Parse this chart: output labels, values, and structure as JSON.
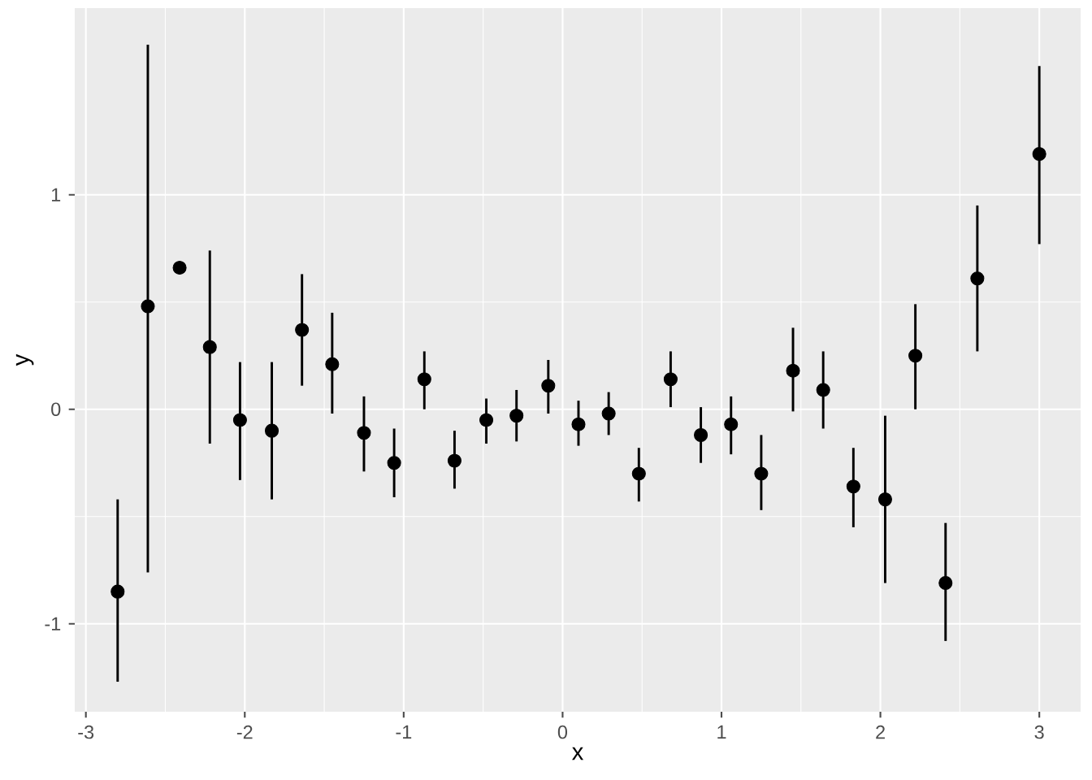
{
  "chart_data": {
    "type": "scatter",
    "xlabel": "x",
    "ylabel": "y",
    "x": [
      -2.8,
      -2.61,
      -2.41,
      -2.22,
      -2.03,
      -1.83,
      -1.64,
      -1.45,
      -1.25,
      -1.06,
      -0.87,
      -0.68,
      -0.48,
      -0.29,
      -0.09,
      0.1,
      0.29,
      0.48,
      0.68,
      0.87,
      1.06,
      1.25,
      1.45,
      1.64,
      1.83,
      2.03,
      2.22,
      2.41,
      2.61,
      3.0
    ],
    "values": [
      -0.85,
      0.48,
      0.66,
      0.29,
      -0.05,
      -0.1,
      0.37,
      0.21,
      -0.11,
      -0.25,
      0.14,
      -0.24,
      -0.05,
      -0.03,
      0.11,
      -0.07,
      -0.02,
      -0.3,
      0.14,
      -0.12,
      -0.07,
      -0.3,
      0.18,
      0.09,
      -0.36,
      -0.42,
      0.25,
      -0.81,
      0.61,
      1.19
    ],
    "errors": [
      [
        -1.27,
        -0.42
      ],
      [
        -0.76,
        1.7
      ],
      null,
      [
        -0.16,
        0.74
      ],
      [
        -0.33,
        0.22
      ],
      [
        -0.42,
        0.22
      ],
      [
        0.11,
        0.63
      ],
      [
        -0.02,
        0.45
      ],
      [
        -0.29,
        0.06
      ],
      [
        -0.41,
        -0.09
      ],
      [
        0.0,
        0.27
      ],
      [
        -0.37,
        -0.1
      ],
      [
        -0.16,
        0.05
      ],
      [
        -0.15,
        0.09
      ],
      [
        -0.02,
        0.23
      ],
      [
        -0.17,
        0.04
      ],
      [
        -0.12,
        0.08
      ],
      [
        -0.43,
        -0.18
      ],
      [
        0.01,
        0.27
      ],
      [
        -0.25,
        0.01
      ],
      [
        -0.21,
        0.06
      ],
      [
        -0.47,
        -0.12
      ],
      [
        -0.01,
        0.38
      ],
      [
        -0.09,
        0.27
      ],
      [
        -0.55,
        -0.18
      ],
      [
        -0.81,
        -0.03
      ],
      [
        0.0,
        0.49
      ],
      [
        -1.08,
        -0.53
      ],
      [
        0.27,
        0.95
      ],
      [
        0.77,
        1.6
      ]
    ],
    "color": "#000000",
    "marker": "circle",
    "xlim": [
      -3.07,
      3.26
    ],
    "ylim": [
      -1.41,
      1.87
    ],
    "xticks": [
      -3,
      -2,
      -1,
      0,
      1,
      2,
      3
    ],
    "yticks": [
      -1,
      0,
      1
    ],
    "grid": true
  }
}
